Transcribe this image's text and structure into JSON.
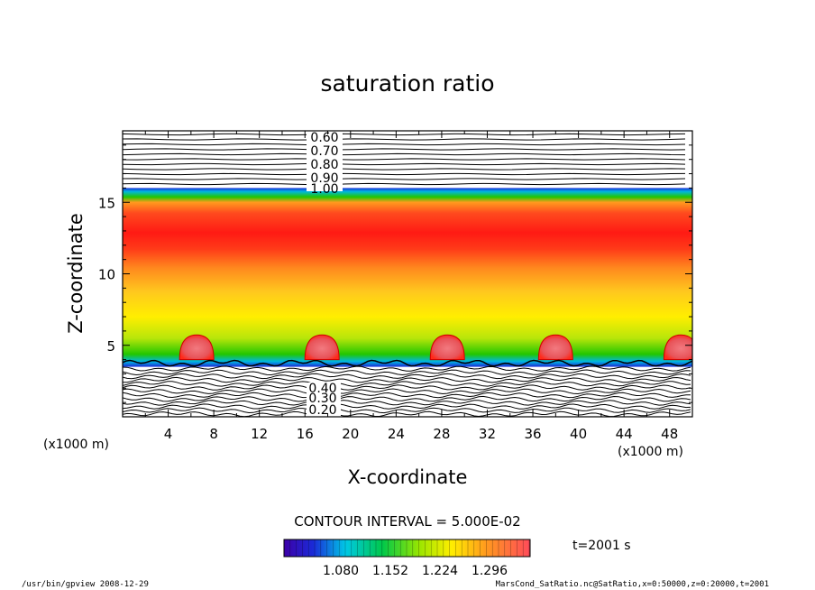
{
  "chart_data": {
    "type": "heatmap",
    "title": "saturation ratio",
    "xlabel": "X-coordinate",
    "ylabel": "Z-coordinate",
    "x_unit": "(x1000 m)",
    "z_unit": "(x1000 m)",
    "xlim": [
      0,
      50
    ],
    "ylim": [
      0,
      20
    ],
    "x_ticks": [
      4,
      8,
      12,
      16,
      20,
      24,
      28,
      32,
      36,
      40,
      44,
      48
    ],
    "y_ticks": [
      5,
      10,
      15
    ],
    "contour_interval_text": "CONTOUR INTERVAL = 5.000E-02",
    "time_text": "t=2001 s",
    "colorbar_ticks": [
      "1.080",
      "1.152",
      "1.224",
      "1.296"
    ],
    "upper_contour_labels": [
      "0.60",
      "0.70",
      "0.80",
      "0.90",
      "1.00"
    ],
    "lower_contour_labels": [
      "0.40",
      "0.30",
      "0.20"
    ],
    "cloud_centers_x": [
      6.5,
      17.5,
      28.5,
      38,
      49
    ],
    "cloud_top_z": 5.6,
    "saturation_band_z": [
      4,
      16
    ],
    "peak_band_z": [
      11,
      14
    ],
    "colors": {
      "low": "#3d00a8",
      "mid": "#22c600",
      "high": "#ffee00",
      "peak": "#ff1a14",
      "cloud": "#e8545a"
    }
  },
  "footer": {
    "program": "/usr/bin/gpview   2008-12-29",
    "source": "MarsCond_SatRatio.nc@SatRatio,x=0:50000,z=0:20000,t=2001"
  }
}
